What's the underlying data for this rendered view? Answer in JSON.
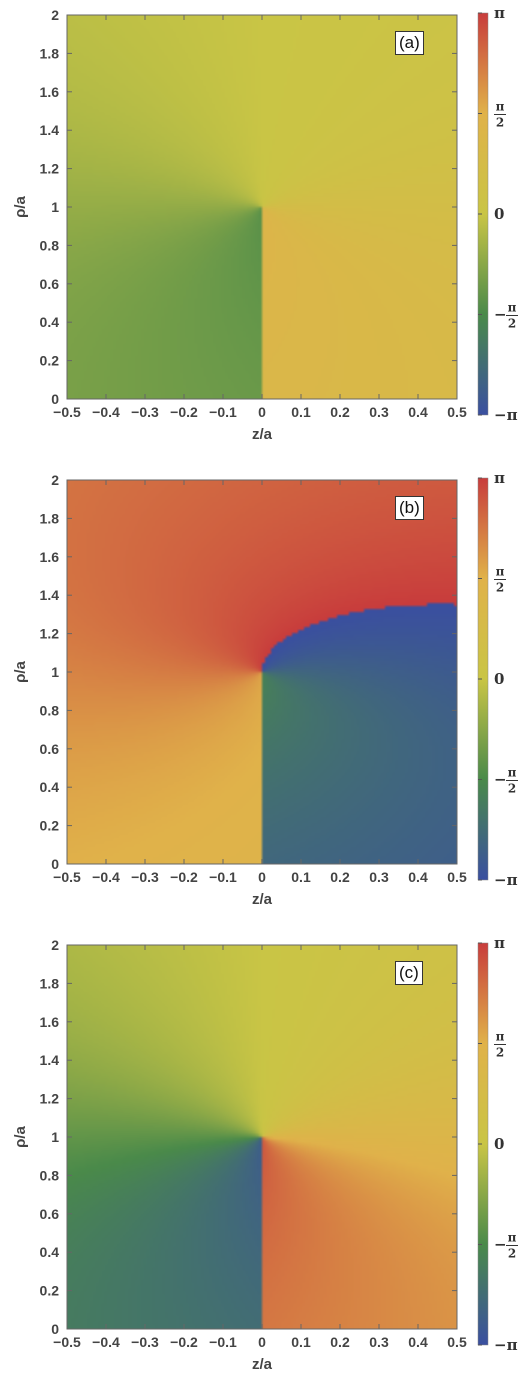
{
  "chart_data": [
    {
      "type": "heatmap",
      "panel_label": "(a)",
      "xlabel": "z/a",
      "ylabel": "ρ/a",
      "xlim": [
        -0.5,
        0.5
      ],
      "ylim": [
        0,
        2
      ],
      "x_ticks": [
        "−0.5",
        "−0.4",
        "−0.3",
        "−0.2",
        "−0.1",
        "0",
        "0.1",
        "0.2",
        "0.3",
        "0.4",
        "0.5"
      ],
      "y_ticks": [
        "0",
        "0.2",
        "0.4",
        "0.6",
        "0.8",
        "1",
        "1.2",
        "1.4",
        "1.6",
        "1.8",
        "2"
      ],
      "phase_singularity": {
        "z": 0,
        "rho": 1
      },
      "phase_cut": {
        "z": 0,
        "rho_from": 1,
        "rho_to": 2
      },
      "winding": 1,
      "phase_offset": 0
    },
    {
      "type": "heatmap",
      "panel_label": "(b)",
      "xlabel": "z/a",
      "ylabel": "ρ/a",
      "xlim": [
        -0.5,
        0.5
      ],
      "ylim": [
        0,
        2
      ],
      "x_ticks": [
        "−0.5",
        "−0.4",
        "−0.3",
        "−0.2",
        "−0.1",
        "0",
        "0.1",
        "0.2",
        "0.3",
        "0.4",
        "0.5"
      ],
      "y_ticks": [
        "0",
        "0.2",
        "0.4",
        "0.6",
        "0.8",
        "1",
        "1.2",
        "1.4",
        "1.6",
        "1.8",
        "2"
      ],
      "phase_singularity": {
        "z": 0,
        "rho": 1
      },
      "phase_cut": {
        "z": 0,
        "rho_from": 0,
        "rho_to": 1
      },
      "winding": 1,
      "phase_offset": 3.14159
    },
    {
      "type": "heatmap",
      "panel_label": "(c)",
      "xlabel": "z/a",
      "ylabel": "ρ/a",
      "xlim": [
        -0.5,
        0.5
      ],
      "ylim": [
        0,
        2
      ],
      "x_ticks": [
        "−0.5",
        "−0.4",
        "−0.3",
        "−0.2",
        "−0.1",
        "0",
        "0.1",
        "0.2",
        "0.3",
        "0.4",
        "0.5"
      ],
      "y_ticks": [
        "0",
        "0.2",
        "0.4",
        "0.6",
        "0.8",
        "1",
        "1.2",
        "1.4",
        "1.6",
        "1.8",
        "2"
      ],
      "phase_singularity": {
        "z": 0,
        "rho": 1
      },
      "phase_cut": {
        "z": 0,
        "rho_from": 0,
        "rho_to": 2
      },
      "winding": 2,
      "phase_offset": 0
    }
  ],
  "colorbar": {
    "range": [
      -3.14159,
      3.14159
    ],
    "ticks": [
      {
        "value": 3.14159,
        "label": "π"
      },
      {
        "value": 1.5708,
        "label": "π/2",
        "num": "π",
        "den": "2"
      },
      {
        "value": 0,
        "label": "0"
      },
      {
        "value": -1.5708,
        "label": "−π/2",
        "sign": "−",
        "num": "π",
        "den": "2"
      },
      {
        "value": -3.14159,
        "label": "−π"
      }
    ],
    "colors": [
      "#3a4fa0",
      "#4a8a4a",
      "#c9c545",
      "#e0b24a",
      "#c83c3c"
    ]
  }
}
